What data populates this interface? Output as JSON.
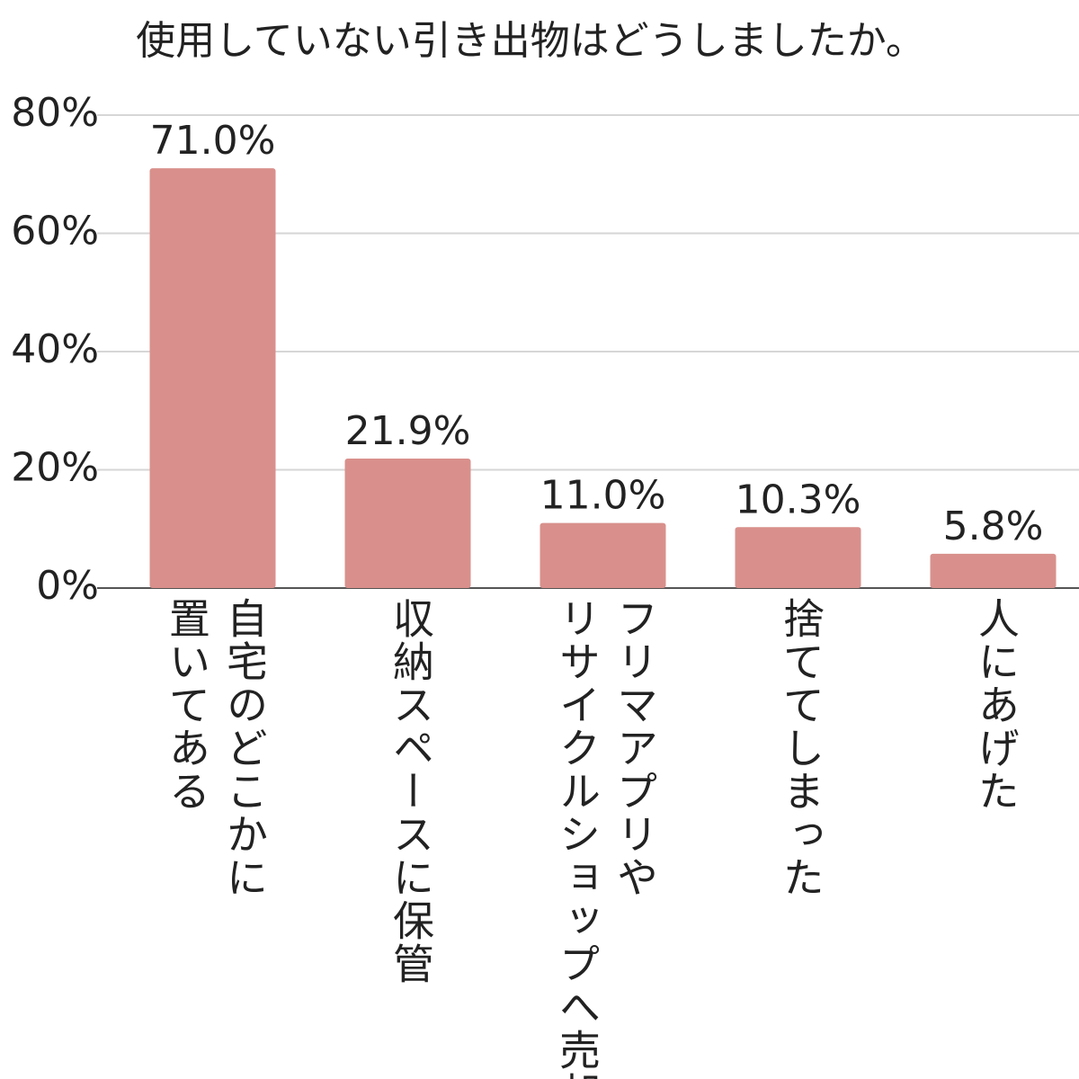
{
  "chart_data": {
    "type": "bar",
    "title": "使用していない引き出物はどうしましたか。",
    "categories": [
      [
        "自宅のどこかに",
        "置いてある"
      ],
      [
        "収納スペースに保管"
      ],
      [
        "フリマアプリや",
        "リサイクルショップへ売却"
      ],
      [
        "捨ててしまった"
      ],
      [
        "人にあげた"
      ]
    ],
    "values": [
      71.0,
      21.9,
      11.0,
      10.3,
      5.8
    ],
    "value_labels": [
      "71.0%",
      "21.9%",
      "11.0%",
      "10.3%",
      "5.8%"
    ],
    "color": "#d9908c",
    "ylim": [
      0,
      80
    ],
    "yticks": [
      {
        "value": 0,
        "label": "0%"
      },
      {
        "value": 20,
        "label": "20%"
      },
      {
        "value": 40,
        "label": "40%"
      },
      {
        "value": 60,
        "label": "60%"
      },
      {
        "value": 80,
        "label": "80%"
      }
    ],
    "grid": true
  }
}
